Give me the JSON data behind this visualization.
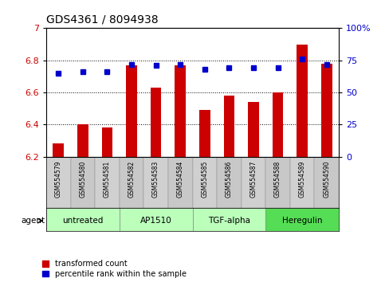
{
  "title": "GDS4361 / 8094938",
  "samples": [
    "GSM554579",
    "GSM554580",
    "GSM554581",
    "GSM554582",
    "GSM554583",
    "GSM554584",
    "GSM554585",
    "GSM554586",
    "GSM554587",
    "GSM554588",
    "GSM554589",
    "GSM554590"
  ],
  "bar_values": [
    6.28,
    6.4,
    6.38,
    6.77,
    6.63,
    6.77,
    6.49,
    6.58,
    6.54,
    6.6,
    6.9,
    6.78
  ],
  "dot_values": [
    65,
    66,
    66,
    72,
    71,
    72,
    68,
    69,
    69,
    69,
    76,
    72
  ],
  "bar_color": "#cc0000",
  "dot_color": "#0000cc",
  "ylim_left": [
    6.2,
    7.0
  ],
  "ylim_right": [
    0,
    100
  ],
  "yticks_left": [
    6.2,
    6.4,
    6.6,
    6.8,
    7.0
  ],
  "ytick_labels_left": [
    "6.2",
    "6.4",
    "6.6",
    "6.8",
    "7"
  ],
  "yticks_right": [
    0,
    25,
    50,
    75,
    100
  ],
  "ytick_labels_right": [
    "0",
    "25",
    "50",
    "75",
    "100%"
  ],
  "grid_values": [
    6.4,
    6.6,
    6.8
  ],
  "agents": [
    {
      "label": "untreated",
      "start": 0,
      "end": 3,
      "color": "#bbffbb"
    },
    {
      "label": "AP1510",
      "start": 3,
      "end": 6,
      "color": "#bbffbb"
    },
    {
      "label": "TGF-alpha",
      "start": 6,
      "end": 9,
      "color": "#bbffbb"
    },
    {
      "label": "Heregulin",
      "start": 9,
      "end": 12,
      "color": "#55dd55"
    }
  ],
  "legend_bar_label": "transformed count",
  "legend_dot_label": "percentile rank within the sample",
  "bar_width": 0.45,
  "plot_bg": "#ffffff",
  "sample_bg": "#cccccc",
  "fig_bg": "#ffffff"
}
